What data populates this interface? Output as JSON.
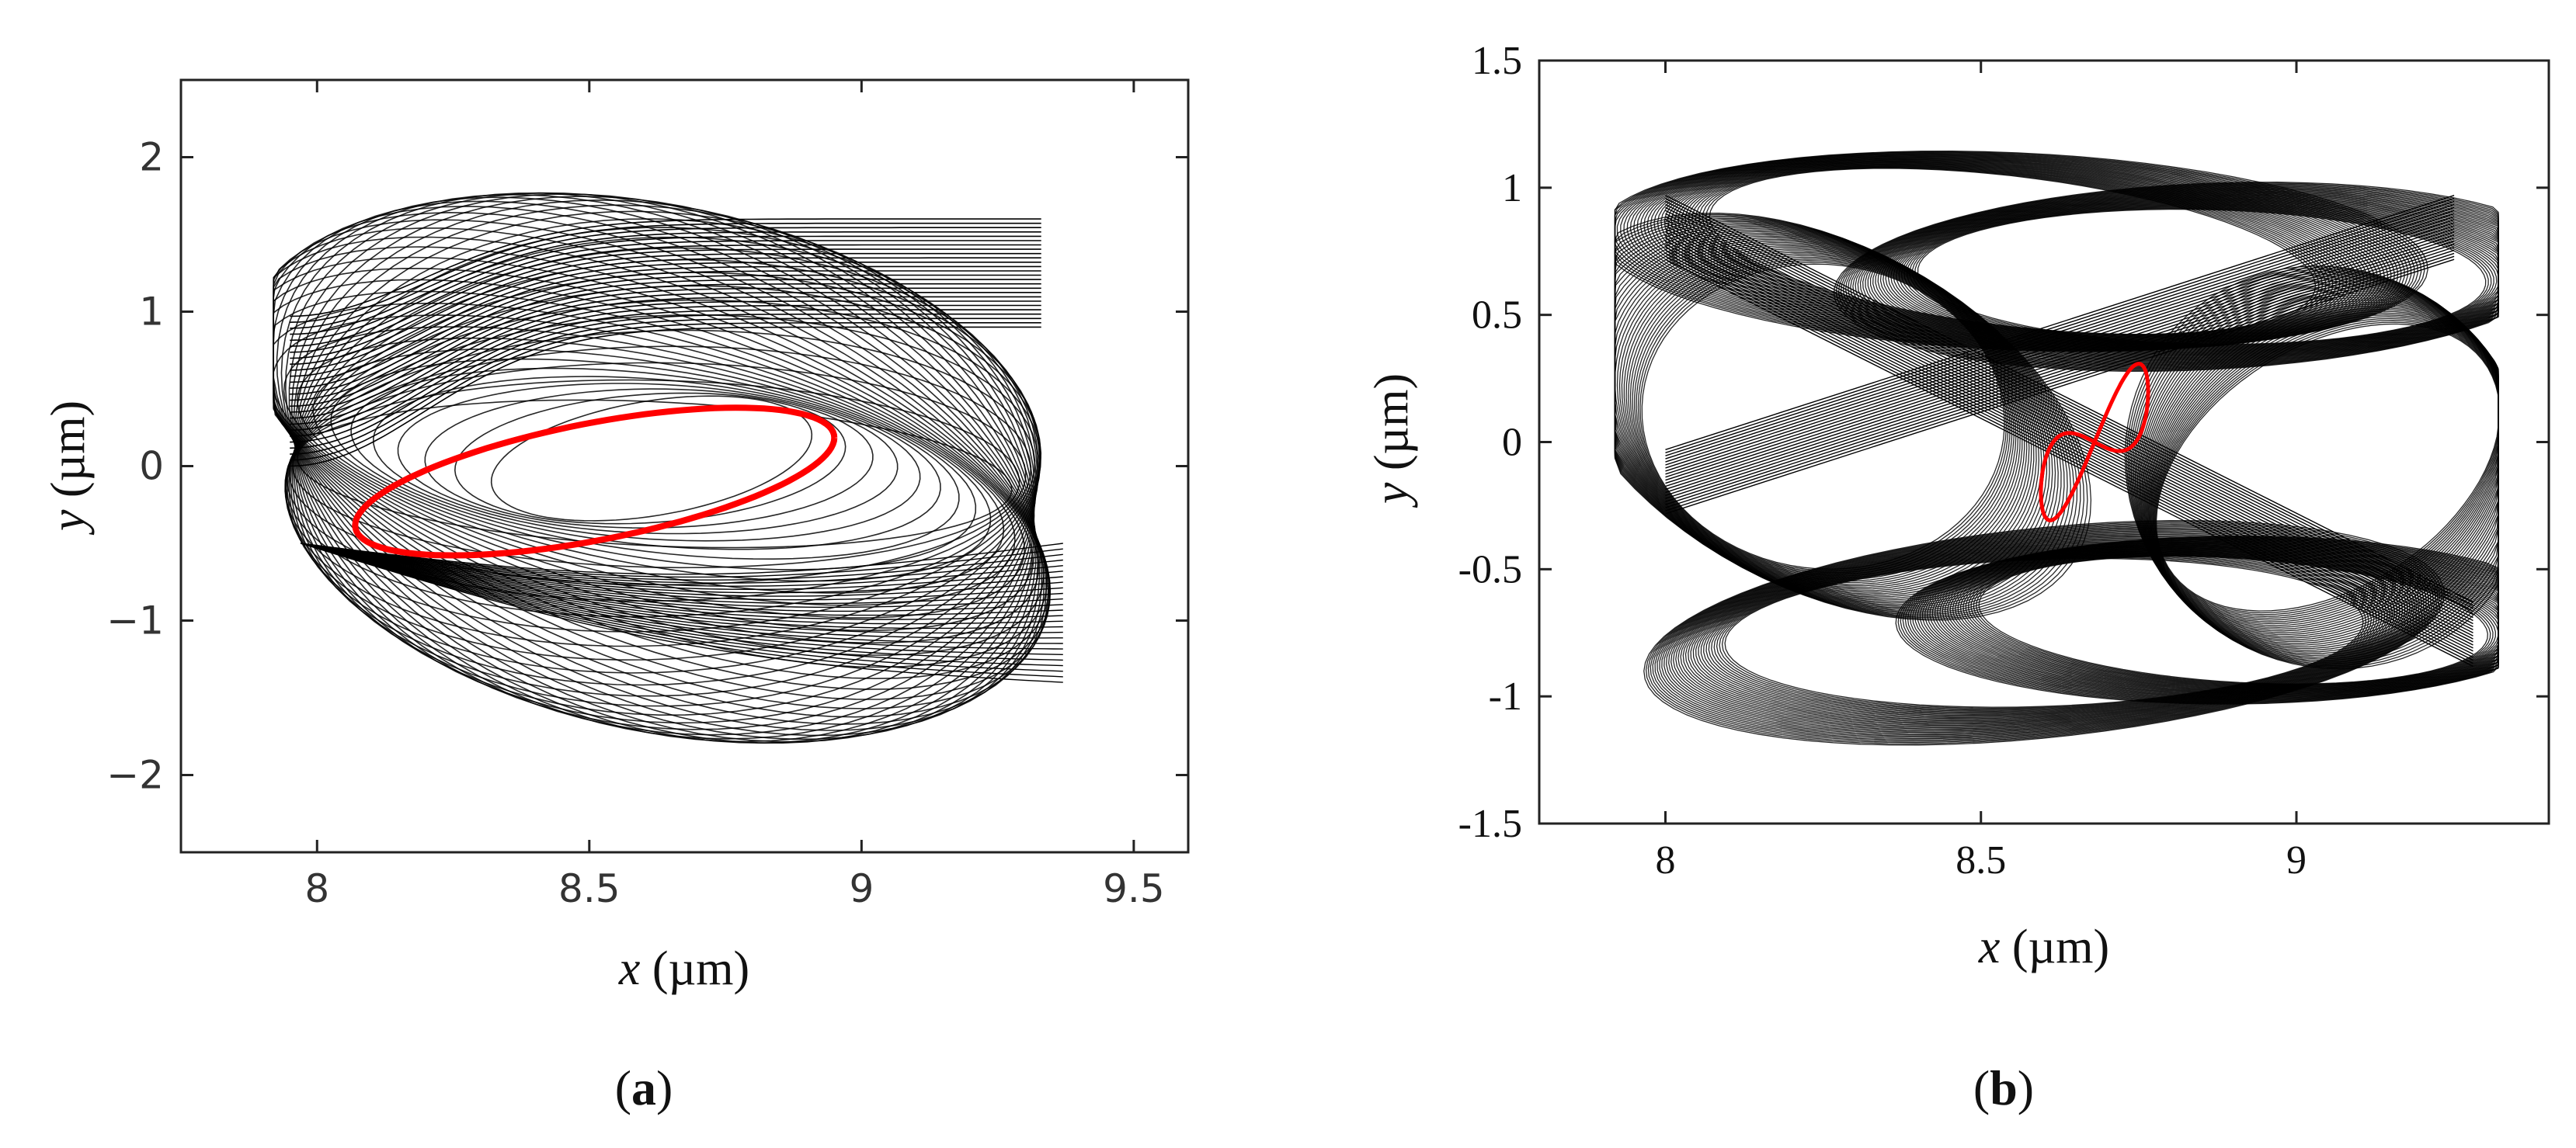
{
  "chart_data": [
    {
      "type": "line",
      "panel_label": "a",
      "xlabel": {
        "var": "x",
        "unit": " (µm)"
      },
      "ylabel": {
        "var": "y",
        "unit": " (µm)"
      },
      "xlim": [
        7.75,
        9.6
      ],
      "ylim": [
        -2.5,
        2.5
      ],
      "xticks": [
        8,
        8.5,
        9,
        9.5
      ],
      "xtick_labels": [
        "8",
        "8.5",
        "9",
        "9.5"
      ],
      "yticks": [
        -2,
        -1,
        0,
        1,
        2
      ],
      "ytick_labels": [
        "−2",
        "−1",
        "0",
        "1",
        "2"
      ],
      "grid": false,
      "series": [
        {
          "color": "#000000",
          "style": "quasi-periodic orbit",
          "envelope": {
            "x": [
              7.9,
              9.4
            ],
            "y": [
              -2.15,
              2.15
            ]
          }
        },
        {
          "color": "#ff0000",
          "style": "ellipse",
          "center": [
            8.5,
            0.05
          ],
          "x_extent": [
            8.07,
            8.95
          ],
          "y_extent": [
            -0.8,
            0.6
          ]
        }
      ]
    },
    {
      "type": "line",
      "panel_label": "b",
      "xlabel": {
        "var": "x",
        "unit": " (µm)"
      },
      "ylabel": {
        "var": "y",
        "unit": " (µm)"
      },
      "xlim": [
        7.8,
        9.4
      ],
      "ylim": [
        -1.5,
        1.5
      ],
      "xticks": [
        8,
        8.5,
        9
      ],
      "xtick_labels": [
        "8",
        "8.5",
        "9"
      ],
      "yticks": [
        -1.5,
        -1,
        -0.5,
        0,
        0.5,
        1,
        1.5
      ],
      "ytick_labels": [
        "-1.5",
        "-1",
        "-0.5",
        "0",
        "0.5",
        "1",
        "1.5"
      ],
      "grid": false,
      "series": [
        {
          "color": "#000000",
          "style": "multi-lobe quasi-periodic orbit",
          "envelope": {
            "x": [
              7.92,
              9.32
            ],
            "y": [
              -1.3,
              1.3
            ]
          }
        },
        {
          "color": "#ff0000",
          "style": "small two-lobe orbit",
          "center": [
            8.68,
            0.0
          ],
          "x_extent": [
            8.59,
            8.76
          ],
          "y_extent": [
            -0.32,
            0.32
          ]
        }
      ]
    }
  ]
}
